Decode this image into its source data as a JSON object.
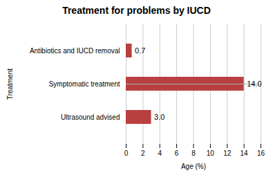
{
  "chart_data": {
    "type": "bar",
    "orientation": "horizontal",
    "title": "Treatment for problems by IUCD",
    "categories": [
      "Ultrasound advised",
      "Symptomatic treatment",
      "Antibiotics and IUCD removal"
    ],
    "values": [
      3.0,
      14.0,
      0.7
    ],
    "value_labels": [
      "3.0",
      "14.0",
      "0.7"
    ],
    "data_labels": true,
    "color": "#b94040",
    "xlabel": "Age (%)",
    "ylabel": "Treatment",
    "xlim": [
      0,
      16
    ],
    "xticks": [
      0,
      2,
      4,
      6,
      8,
      10,
      12,
      14,
      16
    ],
    "grid": true
  }
}
